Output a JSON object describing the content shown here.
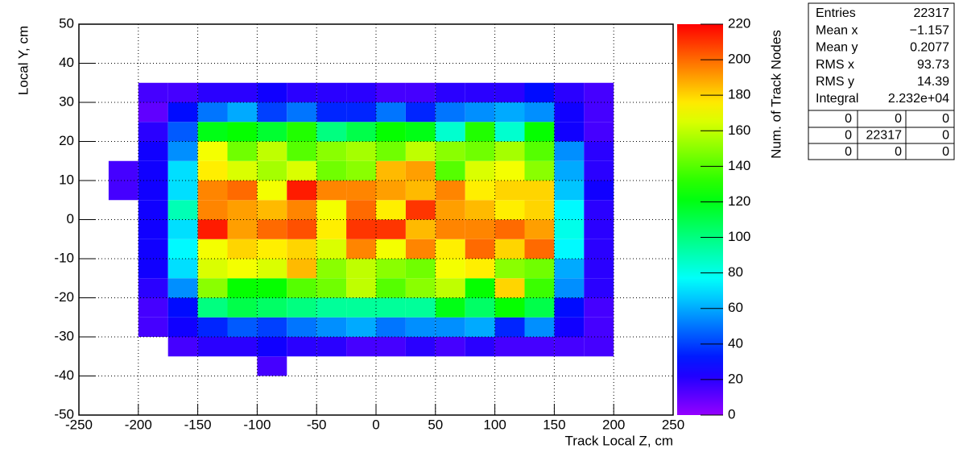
{
  "chart_data": {
    "type": "heatmap",
    "x_label": "Track Local Z, cm",
    "y_label": "Local Y, cm",
    "z_label": "Num. of Track Nodes",
    "xlim": [
      -250,
      250
    ],
    "ylim": [
      -50,
      50
    ],
    "zlim": [
      0,
      220
    ],
    "xticks": [
      -250,
      -200,
      -150,
      -100,
      -50,
      0,
      50,
      100,
      150,
      200,
      250
    ],
    "yticks": [
      -50,
      -40,
      -30,
      -20,
      -10,
      0,
      10,
      20,
      30,
      40,
      50
    ],
    "zticks": [
      0,
      20,
      40,
      60,
      80,
      100,
      120,
      140,
      160,
      180,
      200,
      220
    ],
    "grid": true,
    "colormap": "rainbow",
    "xbins": [
      -225,
      -200,
      -175,
      -150,
      -125,
      -100,
      -75,
      -50,
      -25,
      0,
      25,
      50,
      75,
      100,
      125,
      150,
      175,
      200
    ],
    "ybins": [
      -40,
      -35,
      -30,
      -25,
      -20,
      -15,
      -10,
      -5,
      0,
      5,
      10,
      15,
      20,
      25,
      30,
      35
    ],
    "z": [
      [
        null,
        null,
        null,
        null,
        null,
        15,
        null,
        null,
        null,
        null,
        null,
        null,
        null,
        null,
        null,
        null,
        null
      ],
      [
        null,
        null,
        15,
        20,
        20,
        25,
        20,
        20,
        15,
        15,
        20,
        15,
        20,
        15,
        15,
        15,
        15
      ],
      [
        null,
        15,
        25,
        35,
        45,
        40,
        50,
        55,
        60,
        50,
        55,
        55,
        60,
        35,
        55,
        25,
        15
      ],
      [
        null,
        15,
        30,
        100,
        110,
        105,
        100,
        95,
        95,
        95,
        95,
        120,
        105,
        125,
        110,
        30,
        15
      ],
      [
        null,
        20,
        55,
        150,
        125,
        125,
        140,
        145,
        160,
        140,
        150,
        160,
        125,
        180,
        135,
        55,
        20
      ],
      [
        null,
        25,
        70,
        165,
        170,
        165,
        185,
        150,
        160,
        150,
        145,
        170,
        175,
        150,
        145,
        60,
        20
      ],
      [
        null,
        25,
        75,
        170,
        180,
        175,
        180,
        165,
        195,
        170,
        195,
        175,
        200,
        180,
        200,
        75,
        20
      ],
      [
        null,
        25,
        70,
        215,
        190,
        200,
        205,
        175,
        210,
        210,
        185,
        195,
        195,
        200,
        190,
        80,
        20
      ],
      [
        null,
        25,
        90,
        195,
        190,
        185,
        195,
        170,
        200,
        175,
        210,
        190,
        185,
        175,
        180,
        75,
        20
      ],
      [
        15,
        25,
        70,
        195,
        200,
        170,
        215,
        195,
        195,
        190,
        185,
        195,
        175,
        180,
        180,
        65,
        25
      ],
      [
        15,
        25,
        70,
        175,
        165,
        155,
        165,
        145,
        150,
        185,
        190,
        140,
        165,
        170,
        150,
        60,
        20
      ],
      [
        null,
        25,
        55,
        170,
        145,
        160,
        140,
        150,
        155,
        145,
        160,
        150,
        145,
        155,
        140,
        55,
        20
      ],
      [
        null,
        20,
        45,
        120,
        125,
        115,
        130,
        100,
        110,
        125,
        120,
        85,
        130,
        85,
        125,
        25,
        15
      ],
      [
        null,
        10,
        30,
        50,
        60,
        40,
        50,
        35,
        35,
        50,
        35,
        50,
        55,
        60,
        55,
        25,
        15
      ],
      [
        null,
        15,
        15,
        20,
        20,
        25,
        20,
        20,
        20,
        15,
        15,
        20,
        20,
        20,
        30,
        20,
        15
      ]
    ],
    "stats": [
      {
        "label": "Entries",
        "value": "22317"
      },
      {
        "label": "Mean x",
        "value": "−1.157"
      },
      {
        "label": "Mean y",
        "value": "0.2077"
      },
      {
        "label": "RMS x",
        "value": "93.73"
      },
      {
        "label": "RMS y",
        "value": "14.39"
      },
      {
        "label": "Integral",
        "value": "2.232e+04"
      }
    ],
    "overflow_table": [
      [
        "0",
        "0",
        "0"
      ],
      [
        "0",
        "22317",
        "0"
      ],
      [
        "0",
        "0",
        "0"
      ]
    ]
  }
}
